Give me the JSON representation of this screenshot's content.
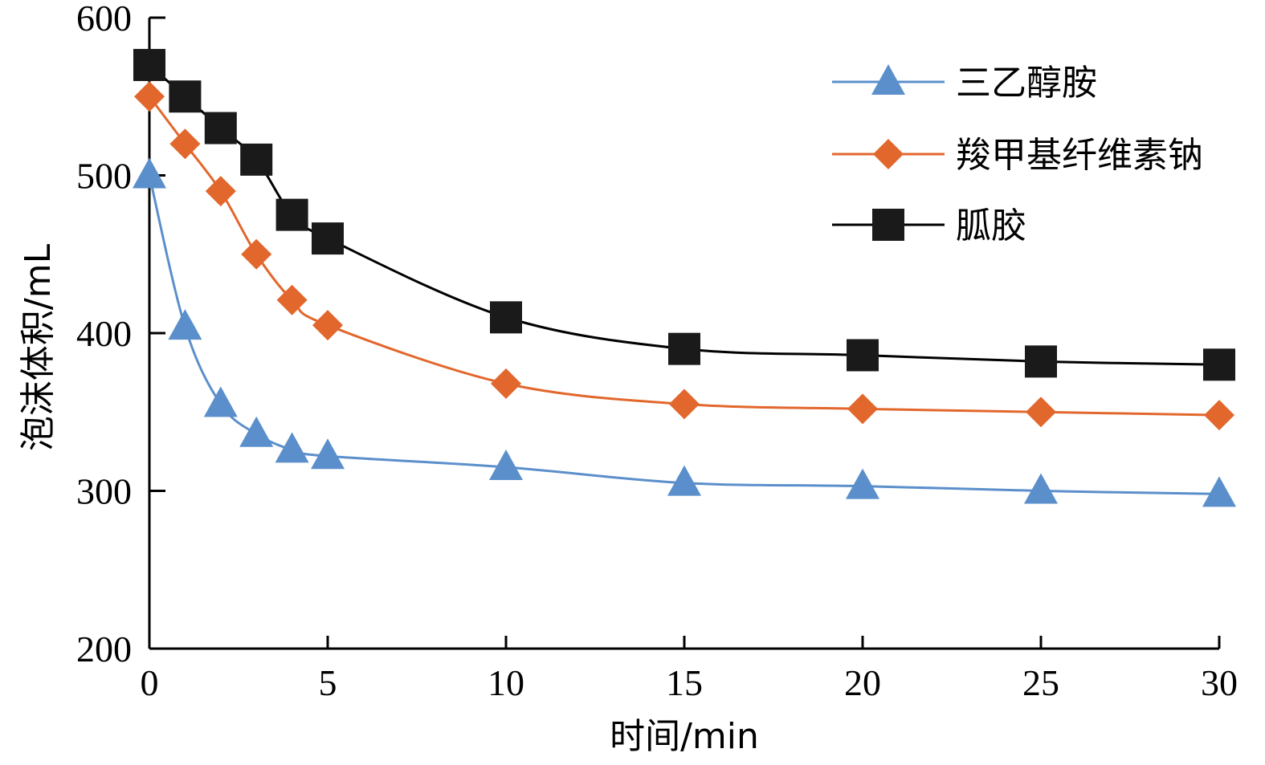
{
  "chart_data": {
    "type": "line",
    "title": "",
    "xlabel": "时间/min",
    "ylabel": "泡沫体积/mL",
    "xlim": [
      0,
      30
    ],
    "ylim": [
      200,
      600
    ],
    "xticks": [
      0,
      5,
      10,
      15,
      20,
      25,
      30
    ],
    "yticks": [
      200,
      300,
      400,
      500,
      600
    ],
    "grid": false,
    "legend_position": "top-right",
    "x": [
      0,
      1,
      2,
      3,
      4,
      5,
      10,
      15,
      20,
      25,
      30
    ],
    "series": [
      {
        "name": "三乙醇胺",
        "marker": "triangle",
        "color": "#5b8fcb",
        "values": [
          500,
          404,
          355,
          336,
          326,
          322,
          315,
          305,
          303,
          300,
          298
        ]
      },
      {
        "name": "羧甲基纤维素钠",
        "marker": "diamond",
        "color": "#e2672d",
        "values": [
          550,
          520,
          490,
          450,
          421,
          405,
          368,
          355,
          352,
          350,
          348
        ]
      },
      {
        "name": "胍胶",
        "marker": "square",
        "color": "#000000",
        "values": [
          570,
          550,
          530,
          510,
          475,
          460,
          410,
          390,
          386,
          382,
          380
        ]
      }
    ]
  }
}
